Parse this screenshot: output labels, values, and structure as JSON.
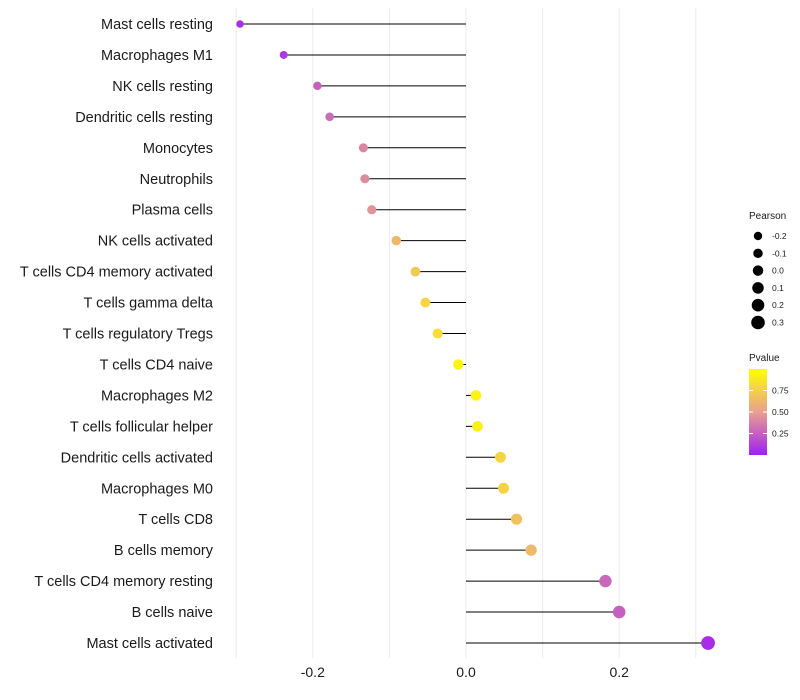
{
  "chart_data": {
    "type": "lollipop",
    "categories": [
      "Mast cells resting",
      "Macrophages M1",
      "NK cells resting",
      "Dendritic cells resting",
      "Monocytes",
      "Neutrophils",
      "Plasma cells",
      "NK cells activated",
      "T cells CD4 memory activated",
      "T cells gamma delta",
      "T cells regulatory  Tregs",
      "T cells CD4 naive",
      "Macrophages M2",
      "T cells follicular helper",
      "Dendritic cells activated",
      "Macrophages M0",
      "T cells CD8",
      "B cells memory",
      "T cells CD4 memory resting",
      "B cells naive",
      "Mast cells activated"
    ],
    "pearson": [
      -0.295,
      -0.238,
      -0.194,
      -0.178,
      -0.134,
      -0.132,
      -0.123,
      -0.091,
      -0.066,
      -0.053,
      -0.037,
      -0.01,
      0.013,
      0.015,
      0.045,
      0.049,
      0.066,
      0.085,
      0.182,
      0.2,
      0.316
    ],
    "pvalue": [
      0.05,
      0.1,
      0.25,
      0.3,
      0.4,
      0.42,
      0.45,
      0.62,
      0.72,
      0.78,
      0.82,
      0.94,
      0.93,
      0.92,
      0.78,
      0.77,
      0.68,
      0.63,
      0.28,
      0.25,
      0.05
    ],
    "x_ticks": [
      -0.2,
      0.0,
      0.2
    ],
    "x_tick_labels": [
      "-0.2",
      "0.0",
      "0.2"
    ],
    "xlim": [
      -0.3,
      0.32
    ],
    "legend_size": {
      "title": "Pearson",
      "values": [
        -0.2,
        -0.1,
        0.0,
        0.1,
        0.2,
        0.3
      ],
      "labels": [
        "-0.2",
        "-0.1",
        "0.0",
        "0.1",
        "0.2",
        "0.3"
      ]
    },
    "legend_color": {
      "title": "Pvalue",
      "breaks": [
        "0.75",
        "0.50",
        "0.25"
      ],
      "break_values": [
        0.75,
        0.5,
        0.25
      ],
      "range": [
        0.0,
        1.0
      ],
      "low_color": "#a020f0",
      "mid_color": "#e8a090",
      "high_color": "#ffff00"
    },
    "colors": {
      "stem": "#000000",
      "grid": "#ebebeb"
    }
  }
}
